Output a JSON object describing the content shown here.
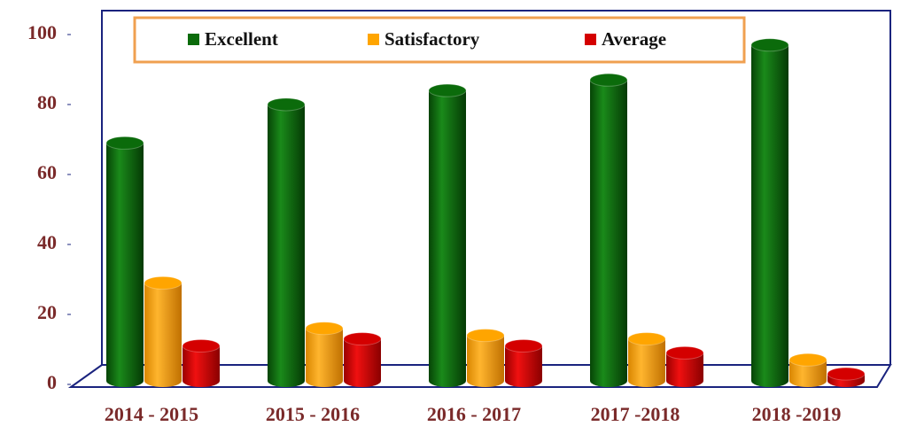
{
  "chart_data": {
    "type": "bar",
    "categories": [
      "2014 - 2015",
      "2015 - 2016",
      "2016 - 2017",
      "2017 -2018",
      "2018 -2019"
    ],
    "series": [
      {
        "name": "Excellent",
        "color": "#0b6b0b",
        "values": [
          68,
          79,
          83,
          86,
          96
        ]
      },
      {
        "name": "Satisfactory",
        "color": "#ffa500",
        "values": [
          28,
          15,
          13,
          12,
          6
        ]
      },
      {
        "name": "Average",
        "color": "#d40000",
        "values": [
          10,
          12,
          10,
          8,
          2
        ]
      }
    ],
    "ylim": [
      0,
      100
    ],
    "yticks": [
      0,
      20,
      40,
      60,
      80,
      100
    ],
    "legend": "top"
  }
}
